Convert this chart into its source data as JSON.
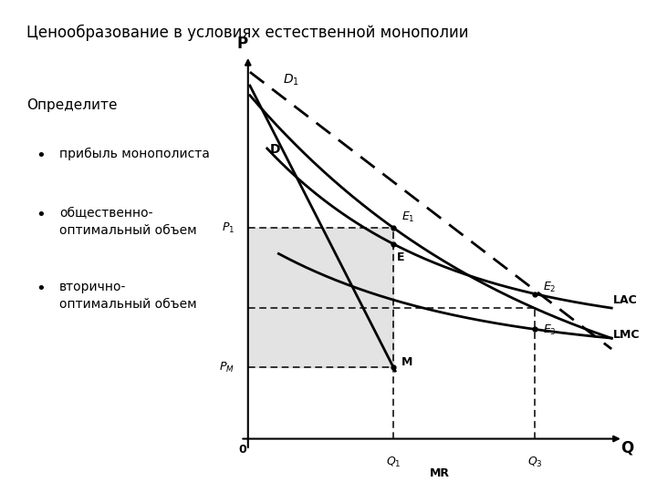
{
  "title": "Ценообразование в условиях естественной монополии",
  "bullet_header": "Определите",
  "bullets": [
    "прибыль монополиста",
    "общественно-\nоптимальный объем",
    "вторично-\nоптимальный объем"
  ],
  "xlabel": "Q",
  "ylabel": "P",
  "bg_color": "#ffffff",
  "Q1": 3.8,
  "Q3": 7.5,
  "D_a": 9.2,
  "D_k": 0.13,
  "D1_a": 9.8,
  "D1_b": 0.78,
  "MR_a": 9.5,
  "MR_b": 2.0,
  "LAC_A": 5.5,
  "LAC_k": 0.22,
  "LAC_C": 2.8,
  "LMC_A": 3.2,
  "LMC_k": 0.2,
  "LMC_C": 2.2
}
